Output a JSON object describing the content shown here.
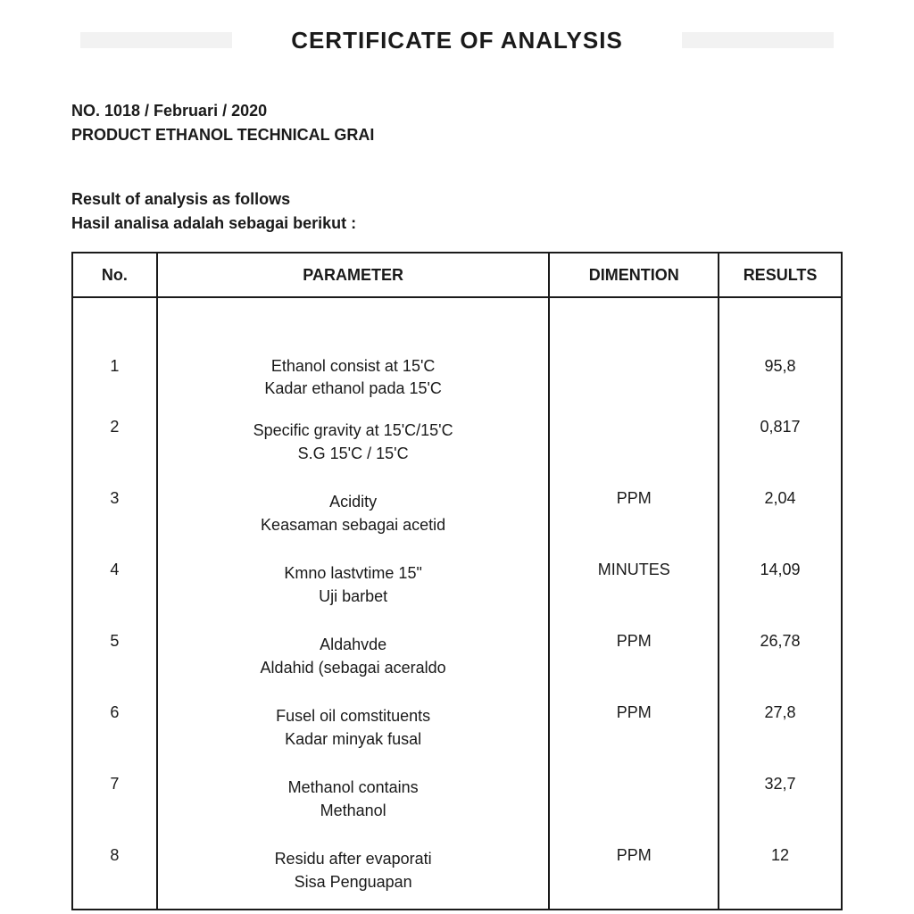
{
  "title": "CERTIFICATE OF ANALYSIS",
  "meta": {
    "number_line": "NO. 1018 / Februari / 2020",
    "product_line": "PRODUCT ETHANOL TECHNICAL GRAI"
  },
  "intro": {
    "line1": "Result of analysis as follows",
    "line2": "Hasil analisa adalah sebagai berikut :"
  },
  "table": {
    "headers": {
      "no": "No.",
      "parameter": "PARAMETER",
      "dimension": "DIMENTION",
      "results": "RESULTS"
    },
    "column_widths_pct": [
      11,
      51,
      22,
      16
    ],
    "border_color": "#1a1a1a",
    "font_size_pt": 14,
    "rows": [
      {
        "no": "1",
        "param_en": "Ethanol consist at 15'C",
        "param_id": "Kadar ethanol pada 15'C",
        "dimension": "",
        "result": "95,8"
      },
      {
        "no": "2",
        "param_en": "Specific gravity at 15'C/15'C",
        "param_id": "S.G 15'C / 15'C",
        "dimension": "",
        "result": "0,817"
      },
      {
        "no": "3",
        "param_en": "Acidity",
        "param_id": "Keasaman sebagai acetid",
        "dimension": "PPM",
        "result": "2,04"
      },
      {
        "no": "4",
        "param_en": "Kmno lastvtime 15\"",
        "param_id": "Uji barbet",
        "dimension": "MINUTES",
        "result": "14,09"
      },
      {
        "no": "5",
        "param_en": "Aldahvde",
        "param_id": "Aldahid (sebagai aceraldo",
        "dimension": "PPM",
        "result": "26,78"
      },
      {
        "no": "6",
        "param_en": "Fusel oil comstituents",
        "param_id": "Kadar minyak fusal",
        "dimension": "PPM",
        "result": "27,8"
      },
      {
        "no": "7",
        "param_en": "Methanol contains",
        "param_id": "Methanol",
        "dimension": "",
        "result": "32,7"
      },
      {
        "no": "8",
        "param_en": "Residu after evaporati",
        "param_id": "Sisa Penguapan",
        "dimension": "PPM",
        "result": "12"
      }
    ]
  },
  "colors": {
    "text": "#1a1a1a",
    "background": "#ffffff",
    "highlight": "#f2f2f2"
  }
}
